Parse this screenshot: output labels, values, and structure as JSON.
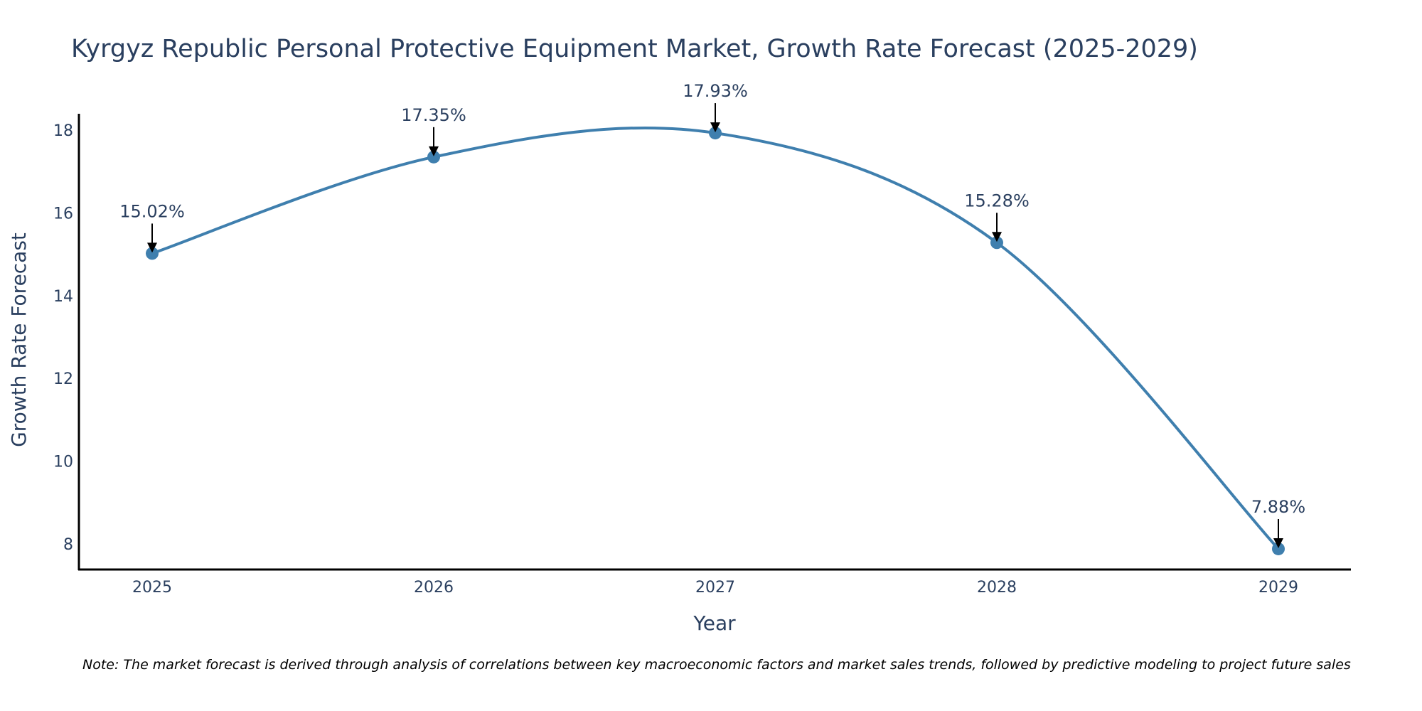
{
  "chart_data": {
    "type": "line",
    "title": "Kyrgyz Republic Personal Protective Equipment Market, Growth Rate Forecast (2025-2029)",
    "xlabel": "Year",
    "ylabel": "Growth Rate Forecast",
    "categories": [
      "2025",
      "2026",
      "2027",
      "2028",
      "2029"
    ],
    "series": [
      {
        "name": "Growth Rate Forecast",
        "values": [
          15.02,
          17.35,
          17.93,
          15.28,
          7.88
        ],
        "labels": [
          "15.02%",
          "17.35%",
          "17.93%",
          "15.28%",
          "7.88%"
        ]
      }
    ],
    "yticks": [
      8,
      10,
      12,
      14,
      16,
      18
    ],
    "ytick_labels": [
      "8",
      "10",
      "12",
      "14",
      "16",
      "18"
    ],
    "ylim": [
      7.35,
      18.4
    ],
    "line_shape": "spline",
    "grid": false,
    "legend": "none",
    "note": "Note: The market forecast is derived through analysis of correlations between key macroeconomic factors and market sales trends, followed by predictive modeling to project future sales",
    "colors": {
      "line": "#3f7fae",
      "marker": "#3f7fae",
      "arrow": "#000000",
      "axis": "#000000",
      "text": "#2a3f5f"
    }
  }
}
